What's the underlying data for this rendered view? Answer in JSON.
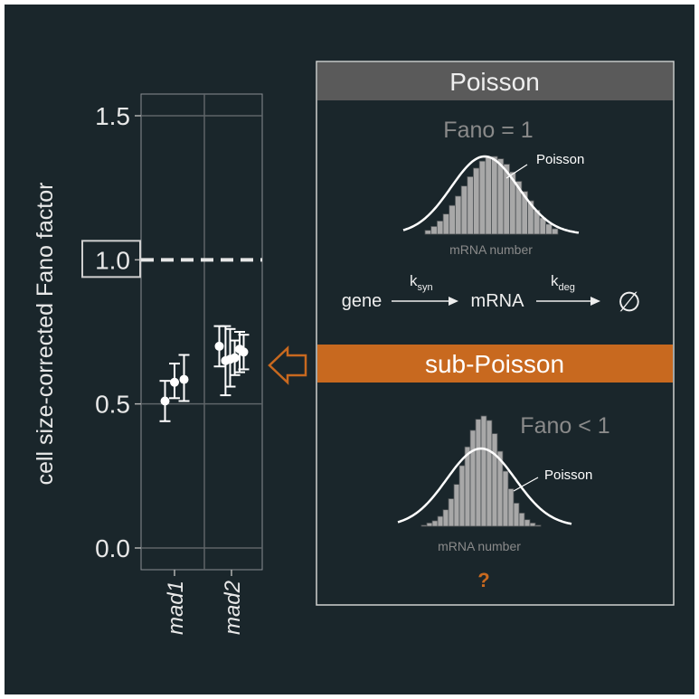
{
  "colors": {
    "background": "#1a262b",
    "panel_border": "#d0d0d0",
    "header_gray": "#5a5a5a",
    "accent_orange": "#c8691f",
    "text_light": "#e8e8e8",
    "text_muted": "#8a8a8a",
    "bar_fill": "#a8a8a8",
    "grid": "#5e6468"
  },
  "chart_data": {
    "type": "scatter",
    "ylabel": "cell size-corrected Fano factor",
    "ylim": [
      -0.08,
      1.58
    ],
    "yticks": [
      {
        "value": 0.0,
        "label": "0.0"
      },
      {
        "value": 0.5,
        "label": "0.5"
      },
      {
        "value": 1.0,
        "label": "1.0"
      },
      {
        "value": 1.5,
        "label": "1.5"
      }
    ],
    "highlighted_tick": "1.0",
    "reference_line": 1.0,
    "categories": [
      "mad1",
      "mad2"
    ],
    "points": [
      {
        "category": "mad1",
        "offset": -0.35,
        "y": 0.51,
        "ylow": 0.44,
        "yhigh": 0.58
      },
      {
        "category": "mad1",
        "offset": 0.0,
        "y": 0.575,
        "ylow": 0.52,
        "yhigh": 0.64
      },
      {
        "category": "mad1",
        "offset": 0.35,
        "y": 0.585,
        "ylow": 0.51,
        "yhigh": 0.67
      },
      {
        "category": "mad2",
        "offset": -0.45,
        "y": 0.7,
        "ylow": 0.63,
        "yhigh": 0.77
      },
      {
        "category": "mad2",
        "offset": -0.22,
        "y": 0.65,
        "ylow": 0.53,
        "yhigh": 0.77
      },
      {
        "category": "mad2",
        "offset": -0.05,
        "y": 0.655,
        "ylow": 0.56,
        "yhigh": 0.76
      },
      {
        "category": "mad2",
        "offset": 0.12,
        "y": 0.66,
        "ylow": 0.6,
        "yhigh": 0.72
      },
      {
        "category": "mad2",
        "offset": 0.3,
        "y": 0.69,
        "ylow": 0.61,
        "yhigh": 0.75
      },
      {
        "category": "mad2",
        "offset": 0.45,
        "y": 0.68,
        "ylow": 0.62,
        "yhigh": 0.74
      }
    ]
  },
  "panel": {
    "poisson": {
      "header": "Poisson",
      "fano_label": "Fano = 1",
      "curve_label": "Poisson",
      "axis_label": "mRNA number",
      "histogram": [
        0.05,
        0.1,
        0.17,
        0.26,
        0.37,
        0.49,
        0.62,
        0.74,
        0.85,
        0.94,
        0.99,
        1.0,
        0.97,
        0.9,
        0.8,
        0.68,
        0.55,
        0.43,
        0.31,
        0.21,
        0.13,
        0.07
      ]
    },
    "reaction": {
      "gene": "gene",
      "k_syn_main": "k",
      "k_syn_sub": "syn",
      "mrna": "mRNA",
      "k_deg_main": "k",
      "k_deg_sub": "deg",
      "product": "∅"
    },
    "sub_poisson": {
      "header": "sub-Poisson",
      "fano_label": "Fano < 1",
      "curve_label": "Poisson",
      "axis_label": "mRNA number",
      "question": "?",
      "histogram": [
        0.01,
        0.03,
        0.05,
        0.09,
        0.15,
        0.25,
        0.38,
        0.55,
        0.72,
        0.87,
        0.97,
        1.0,
        0.96,
        0.84,
        0.68,
        0.5,
        0.34,
        0.21,
        0.12,
        0.06,
        0.03,
        0.01
      ]
    }
  }
}
